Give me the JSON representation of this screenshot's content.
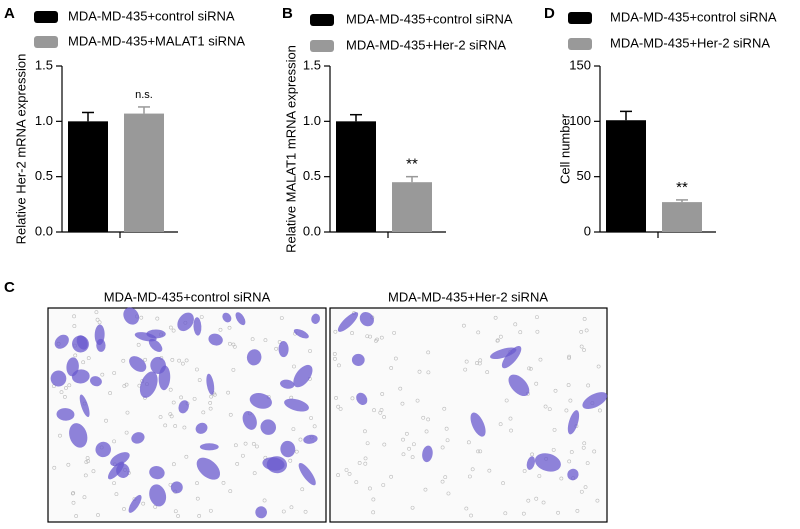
{
  "chart_data": [
    {
      "type": "bar",
      "panel": "A",
      "y_label": "Relative Her-2 mRNA expression",
      "ylim": [
        0,
        1.5
      ],
      "yticks": [
        {
          "value": 0,
          "label": "0.0"
        },
        {
          "value": 0.5,
          "label": "0.5"
        },
        {
          "value": 1,
          "label": "1.0"
        },
        {
          "value": 1.5,
          "label": "1.5"
        }
      ],
      "series": [
        {
          "name": "MDA-MD-435+control siRNA",
          "color": "#000000",
          "values": [
            1.0
          ],
          "errors": [
            0.08
          ]
        },
        {
          "name": "MDA-MD-435+MALAT1 siRNA",
          "color": "#999999",
          "values": [
            1.07
          ],
          "errors": [
            0.06
          ],
          "annotation": "n.s."
        }
      ]
    },
    {
      "type": "bar",
      "panel": "B",
      "y_label": "Relative MALAT1 mRNA expression",
      "ylim": [
        0,
        1.5
      ],
      "yticks": [
        {
          "value": 0,
          "label": "0.0"
        },
        {
          "value": 0.5,
          "label": "0.5"
        },
        {
          "value": 1,
          "label": "1.0"
        },
        {
          "value": 1.5,
          "label": "1.5"
        }
      ],
      "series": [
        {
          "name": "MDA-MD-435+control siRNA",
          "color": "#000000",
          "values": [
            1.0
          ],
          "errors": [
            0.06
          ]
        },
        {
          "name": "MDA-MD-435+Her-2 siRNA",
          "color": "#999999",
          "values": [
            0.45
          ],
          "errors": [
            0.05
          ],
          "annotation": "**"
        }
      ]
    },
    {
      "type": "bar",
      "panel": "D",
      "y_label": "Cell number",
      "ylim": [
        0,
        150
      ],
      "yticks": [
        0,
        50,
        100,
        150
      ],
      "series": [
        {
          "name": "MDA-MD-435+control siRNA",
          "color": "#000000",
          "values": [
            101
          ],
          "errors": [
            8
          ]
        },
        {
          "name": "MDA-MD-435+Her-2 siRNA",
          "color": "#999999",
          "values": [
            27
          ],
          "errors": [
            2
          ],
          "annotation": "**"
        }
      ]
    }
  ],
  "panel_c": {
    "label": "C",
    "images": [
      {
        "title": "MDA-MD-435+control siRNA"
      },
      {
        "title": "MDA-MD-435+Her-2 siRNA"
      }
    ]
  }
}
